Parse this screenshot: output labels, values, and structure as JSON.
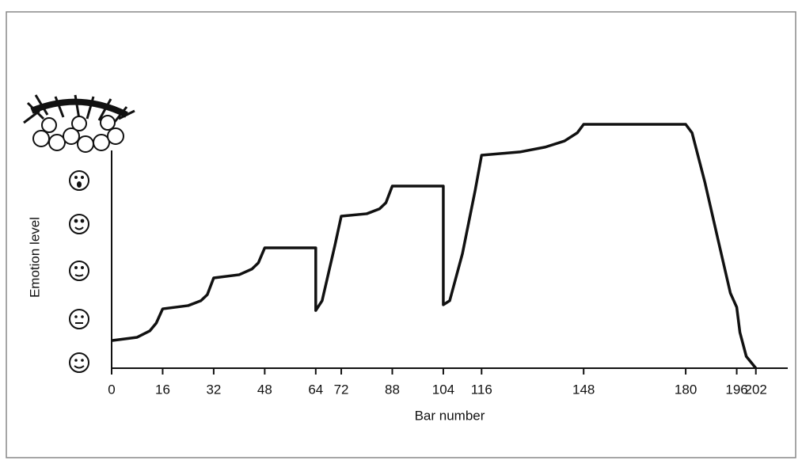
{
  "chart_data": {
    "type": "line",
    "x_label": "Bar number",
    "y_label": "Emotion level",
    "xlim": [
      0,
      212
    ],
    "ylim": [
      0,
      6
    ],
    "xticks": [
      0,
      16,
      32,
      48,
      64,
      72,
      88,
      104,
      116,
      148,
      180,
      196,
      202
    ],
    "x": [
      0,
      8,
      12,
      14,
      16,
      24,
      28,
      30,
      32,
      40,
      44,
      46,
      48,
      64,
      64,
      66,
      68,
      70,
      72,
      80,
      84,
      86,
      88,
      104,
      104,
      106,
      110,
      114,
      116,
      128,
      136,
      142,
      146,
      148,
      180,
      182,
      186,
      190,
      194,
      196,
      197,
      199,
      202
    ],
    "series": [
      {
        "color": "#111111",
        "values": [
          0.68,
          0.76,
          0.92,
          1.11,
          1.46,
          1.54,
          1.66,
          1.81,
          2.22,
          2.3,
          2.44,
          2.59,
          2.96,
          2.96,
          1.42,
          1.66,
          2.34,
          3.02,
          3.74,
          3.8,
          3.92,
          4.07,
          4.48,
          4.48,
          1.56,
          1.66,
          2.82,
          4.38,
          5.24,
          5.32,
          5.44,
          5.59,
          5.79,
          6.0,
          6.0,
          5.79,
          4.58,
          3.21,
          1.85,
          1.5,
          0.88,
          0.29,
          0
        ]
      }
    ]
  }
}
